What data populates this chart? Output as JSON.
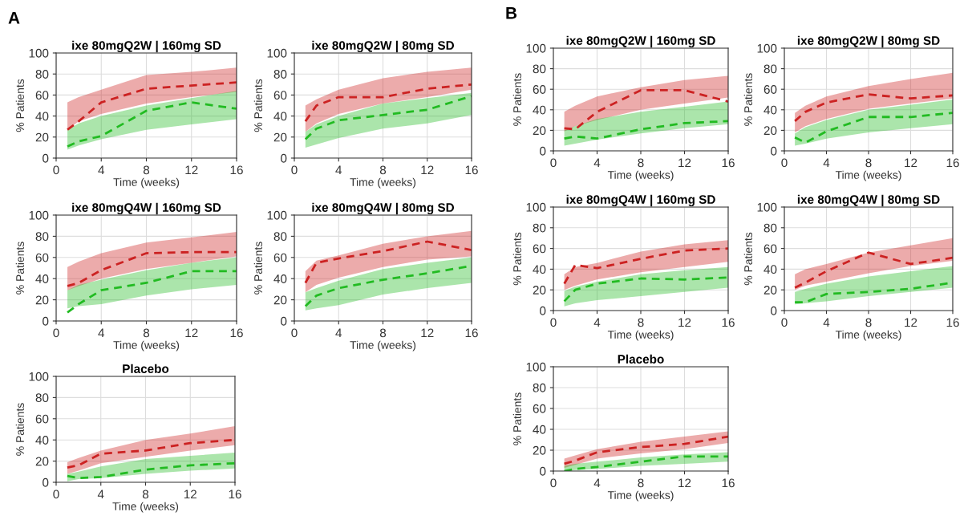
{
  "chart_data": [
    {
      "type": "line",
      "annotations": [
        "A"
      ],
      "title": "ixe 80mgQ2W | 160mg SD",
      "xlabel": "Time (weeks)",
      "ylabel": "% Patients",
      "xlim": [
        0,
        16
      ],
      "xticks": [
        0,
        4,
        8,
        12,
        16
      ],
      "ylim": [
        0,
        100
      ],
      "yticks": [
        0,
        20,
        40,
        60,
        80,
        100
      ],
      "grid": true,
      "line_style": "dashed",
      "x": [
        1,
        2,
        4,
        8,
        12,
        16
      ],
      "series": [
        {
          "color": "#cc2222",
          "values": [
            27,
            35,
            53,
            66,
            69,
            72
          ],
          "lower": [
            27,
            35,
            42,
            52,
            58,
            63
          ],
          "upper": [
            53,
            58,
            65,
            79,
            82,
            86
          ]
        },
        {
          "color": "#22bb22",
          "values": [
            11,
            16,
            21,
            45,
            53,
            47
          ],
          "lower": [
            8,
            12,
            18,
            27,
            32,
            37
          ],
          "upper": [
            27,
            33,
            40,
            50,
            57,
            64
          ]
        }
      ]
    },
    {
      "type": "line",
      "title": "ixe 80mgQ2W | 80mg SD",
      "xlabel": "Time (weeks)",
      "ylabel": "% Patients",
      "xlim": [
        0,
        16
      ],
      "xticks": [
        0,
        4,
        8,
        12,
        16
      ],
      "ylim": [
        0,
        100
      ],
      "yticks": [
        0,
        20,
        40,
        60,
        80,
        100
      ],
      "grid": true,
      "line_style": "dashed",
      "x": [
        1,
        2,
        4,
        8,
        12,
        16
      ],
      "series": [
        {
          "color": "#cc2222",
          "values": [
            35,
            50,
            58,
            58,
            66,
            70
          ],
          "lower": [
            25,
            33,
            42,
            52,
            58,
            65
          ],
          "upper": [
            50,
            56,
            65,
            76,
            82,
            86
          ]
        },
        {
          "color": "#22bb22",
          "values": [
            18,
            28,
            36,
            41,
            46,
            59
          ],
          "lower": [
            10,
            13,
            19,
            28,
            33,
            41
          ],
          "upper": [
            25,
            32,
            40,
            52,
            57,
            62
          ]
        }
      ]
    },
    {
      "type": "line",
      "title": "ixe 80mgQ4W | 160mg SD",
      "xlabel": "Time (weeks)",
      "ylabel": "% Patients",
      "xlim": [
        0,
        16
      ],
      "xticks": [
        0,
        4,
        8,
        12,
        16
      ],
      "ylim": [
        0,
        100
      ],
      "yticks": [
        0,
        20,
        40,
        60,
        80,
        100
      ],
      "grid": true,
      "line_style": "dashed",
      "x": [
        1,
        2,
        4,
        8,
        12,
        16
      ],
      "series": [
        {
          "color": "#cc2222",
          "values": [
            33,
            36,
            48,
            64,
            65,
            65
          ],
          "lower": [
            29,
            33,
            40,
            49,
            55,
            61
          ],
          "upper": [
            51,
            56,
            64,
            74,
            79,
            84
          ]
        },
        {
          "color": "#22bb22",
          "values": [
            8,
            16,
            29,
            36,
            47,
            47
          ],
          "lower": [
            12,
            14,
            16,
            24,
            30,
            34
          ],
          "upper": [
            29,
            34,
            39,
            48,
            55,
            60
          ]
        }
      ]
    },
    {
      "type": "line",
      "title": "ixe 80mgQ4W | 80mg SD",
      "xlabel": "Time (weeks)",
      "ylabel": "% Patients",
      "xlim": [
        0,
        16
      ],
      "xticks": [
        0,
        4,
        8,
        12,
        16
      ],
      "ylim": [
        0,
        100
      ],
      "yticks": [
        0,
        20,
        40,
        60,
        80,
        100
      ],
      "grid": true,
      "line_style": "dashed",
      "x": [
        1,
        2,
        4,
        8,
        12,
        16
      ],
      "series": [
        {
          "color": "#cc2222",
          "values": [
            36,
            55,
            59,
            66,
            75,
            67
          ],
          "lower": [
            27,
            34,
            41,
            51,
            58,
            61
          ],
          "upper": [
            47,
            57,
            62,
            73,
            80,
            85
          ]
        },
        {
          "color": "#22bb22",
          "values": [
            14,
            24,
            31,
            39,
            45,
            52
          ],
          "lower": [
            10,
            12,
            15,
            25,
            31,
            36
          ],
          "upper": [
            27,
            31,
            38,
            49,
            55,
            60
          ]
        }
      ]
    },
    {
      "type": "line",
      "title": "Placebo",
      "xlabel": "Time (weeks)",
      "ylabel": "% Patients",
      "xlim": [
        0,
        16
      ],
      "xticks": [
        0,
        4,
        8,
        12,
        16
      ],
      "ylim": [
        0,
        100
      ],
      "yticks": [
        0,
        20,
        40,
        60,
        80,
        100
      ],
      "grid": true,
      "line_style": "dashed",
      "x": [
        1,
        2,
        4,
        8,
        12,
        16
      ],
      "series": [
        {
          "color": "#cc2222",
          "values": [
            14,
            16,
            27,
            30,
            37,
            40
          ],
          "lower": [
            8,
            11,
            18,
            24,
            30,
            35
          ],
          "upper": [
            19,
            23,
            30,
            40,
            46,
            53
          ]
        },
        {
          "color": "#22bb22",
          "values": [
            6,
            4,
            5,
            12,
            16,
            18
          ],
          "lower": [
            1,
            3,
            4,
            8,
            11,
            13
          ],
          "upper": [
            8,
            10,
            15,
            22,
            25,
            28
          ]
        }
      ]
    },
    {
      "type": "line",
      "annotations": [
        "B"
      ],
      "title": "ixe 80mgQ2W | 160mg SD",
      "xlabel": "Time (weeks)",
      "ylabel": "% Patients",
      "xlim": [
        0,
        16
      ],
      "xticks": [
        0,
        4,
        8,
        12,
        16
      ],
      "ylim": [
        0,
        100
      ],
      "yticks": [
        0,
        20,
        40,
        60,
        80,
        100
      ],
      "grid": true,
      "line_style": "dashed",
      "x": [
        1,
        2,
        4,
        8,
        12,
        16
      ],
      "series": [
        {
          "color": "#cc2222",
          "values": [
            22,
            21,
            38,
            59,
            59,
            48
          ],
          "lower": [
            19,
            24,
            30,
            40,
            46,
            52
          ],
          "upper": [
            38,
            44,
            53,
            62,
            69,
            73
          ]
        },
        {
          "color": "#22bb22",
          "values": [
            12,
            14,
            12,
            21,
            27,
            29
          ],
          "lower": [
            5,
            7,
            11,
            17,
            22,
            26
          ],
          "upper": [
            20,
            24,
            31,
            38,
            43,
            48
          ]
        }
      ]
    },
    {
      "type": "line",
      "title": "ixe 80mgQ2W | 80mg SD",
      "xlabel": "Time (weeks)",
      "ylabel": "% Patients",
      "xlim": [
        0,
        16
      ],
      "xticks": [
        0,
        4,
        8,
        12,
        16
      ],
      "ylim": [
        0,
        100
      ],
      "yticks": [
        0,
        20,
        40,
        60,
        80,
        100
      ],
      "grid": true,
      "line_style": "dashed",
      "x": [
        1,
        2,
        4,
        8,
        12,
        16
      ],
      "series": [
        {
          "color": "#cc2222",
          "values": [
            29,
            38,
            47,
            55,
            51,
            54
          ],
          "lower": [
            18,
            24,
            31,
            41,
            46,
            51
          ],
          "upper": [
            37,
            44,
            53,
            63,
            70,
            76
          ]
        },
        {
          "color": "#22bb22",
          "values": [
            13,
            8,
            19,
            33,
            33,
            37
          ],
          "lower": [
            5,
            7,
            12,
            18,
            22,
            26
          ],
          "upper": [
            17,
            23,
            30,
            40,
            45,
            50
          ]
        }
      ]
    },
    {
      "type": "line",
      "title": "ixe 80mgQ4W | 160mg SD",
      "xlabel": "Time (weeks)",
      "ylabel": "% Patients",
      "xlim": [
        0,
        16
      ],
      "xticks": [
        0,
        4,
        8,
        12,
        16
      ],
      "ylim": [
        0,
        100
      ],
      "yticks": [
        0,
        20,
        40,
        60,
        80,
        100
      ],
      "grid": true,
      "line_style": "dashed",
      "x": [
        1,
        2,
        4,
        8,
        12,
        16
      ],
      "series": [
        {
          "color": "#cc2222",
          "values": [
            26,
            44,
            41,
            50,
            58,
            60
          ],
          "lower": [
            20,
            24,
            30,
            37,
            42,
            47
          ],
          "upper": [
            35,
            42,
            46,
            57,
            64,
            68
          ]
        },
        {
          "color": "#22bb22",
          "values": [
            9,
            20,
            26,
            31,
            30,
            32
          ],
          "lower": [
            4,
            7,
            10,
            14,
            18,
            22
          ],
          "upper": [
            19,
            23,
            28,
            35,
            39,
            42
          ]
        }
      ]
    },
    {
      "type": "line",
      "title": "ixe 80mgQ4W | 80mg SD",
      "xlabel": "Time (weeks)",
      "ylabel": "% Patients",
      "xlim": [
        0,
        16
      ],
      "xticks": [
        0,
        4,
        8,
        12,
        16
      ],
      "ylim": [
        0,
        100
      ],
      "yticks": [
        0,
        20,
        40,
        60,
        80,
        100
      ],
      "grid": true,
      "line_style": "dashed",
      "x": [
        1,
        2,
        4,
        8,
        12,
        16
      ],
      "series": [
        {
          "color": "#cc2222",
          "values": [
            22,
            27,
            38,
            56,
            45,
            51
          ],
          "lower": [
            20,
            24,
            28,
            36,
            43,
            48
          ],
          "upper": [
            35,
            40,
            45,
            56,
            63,
            70
          ]
        },
        {
          "color": "#22bb22",
          "values": [
            8,
            8,
            16,
            18,
            21,
            27
          ],
          "lower": [
            6,
            7,
            9,
            14,
            18,
            22
          ],
          "upper": [
            18,
            21,
            26,
            33,
            38,
            43
          ]
        }
      ]
    },
    {
      "type": "line",
      "title": "Placebo",
      "xlabel": "Time (weeks)",
      "ylabel": "% Patients",
      "xlim": [
        0,
        16
      ],
      "xticks": [
        0,
        4,
        8,
        12,
        16
      ],
      "ylim": [
        0,
        100
      ],
      "yticks": [
        0,
        20,
        40,
        60,
        80,
        100
      ],
      "grid": true,
      "line_style": "dashed",
      "x": [
        1,
        2,
        4,
        8,
        12,
        16
      ],
      "series": [
        {
          "color": "#cc2222",
          "values": [
            7,
            10,
            18,
            23,
            26,
            33
          ],
          "lower": [
            3,
            6,
            12,
            17,
            21,
            27
          ],
          "upper": [
            12,
            15,
            21,
            28,
            33,
            38
          ]
        },
        {
          "color": "#22bb22",
          "values": [
            0,
            2,
            4,
            9,
            14,
            14
          ],
          "lower": [
            0,
            1,
            2,
            5,
            7,
            9
          ],
          "upper": [
            5,
            7,
            9,
            13,
            16,
            18
          ]
        }
      ]
    }
  ]
}
